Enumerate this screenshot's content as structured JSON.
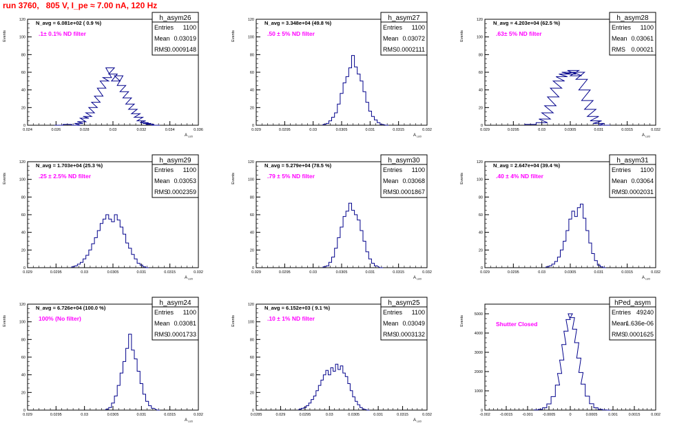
{
  "title": "run 3760,   805 V, I_pe ≈ 7.00 nA, 120 Hz",
  "colors": {
    "title": "#ff0000",
    "histogram": "#00008b",
    "annotation": "#ff00ff",
    "axis": "#000000"
  },
  "stats_labels": {
    "entries": "Entries",
    "mean": "Mean",
    "rms": "RMS"
  },
  "chart_data": [
    {
      "type": "histogram",
      "name": "h_asym26",
      "navg": "N_avg = 6.081e+02 ( 0.9 %)",
      "filter": ".1± 0.1% ND filter",
      "entries": "1100",
      "mean": "0.03019",
      "rms": "0.0009148",
      "ylabel": "Events",
      "xlabel": "A",
      "xlim": [
        0.024,
        0.036
      ],
      "ylim": [
        0,
        120
      ],
      "xticks": [
        "0.024",
        "0.026",
        "0.028",
        "0.03",
        "0.032",
        "0.034",
        "0.036"
      ],
      "yticks": [
        "0",
        "20",
        "40",
        "60",
        "80",
        "100",
        "120"
      ],
      "bins": [
        [
          0.0262,
          0
        ],
        [
          0.0268,
          1
        ],
        [
          0.0274,
          0
        ],
        [
          0.0276,
          2
        ],
        [
          0.0278,
          4
        ],
        [
          0.028,
          8
        ],
        [
          0.0282,
          10
        ],
        [
          0.0284,
          14
        ],
        [
          0.0286,
          20
        ],
        [
          0.0288,
          26
        ],
        [
          0.029,
          33
        ],
        [
          0.0292,
          42
        ],
        [
          0.0294,
          50
        ],
        [
          0.0296,
          54
        ],
        [
          0.0298,
          65
        ],
        [
          0.03,
          58
        ],
        [
          0.0302,
          50
        ],
        [
          0.0304,
          56
        ],
        [
          0.0306,
          45
        ],
        [
          0.0308,
          38
        ],
        [
          0.031,
          31
        ],
        [
          0.0312,
          24
        ],
        [
          0.0314,
          18
        ],
        [
          0.0316,
          13
        ],
        [
          0.0318,
          9
        ],
        [
          0.032,
          5
        ],
        [
          0.0322,
          3
        ],
        [
          0.0324,
          2
        ],
        [
          0.0326,
          1
        ],
        [
          0.033,
          0
        ]
      ]
    },
    {
      "type": "histogram",
      "name": "h_asym27",
      "navg": "N_avg = 3.348e+04 (49.8 %)",
      "filter": ".50 ± 5% ND filter",
      "entries": "1100",
      "mean": "0.03072",
      "rms": "0.0002111",
      "ylabel": "Events",
      "xlabel": "A",
      "xlim": [
        0.029,
        0.032
      ],
      "ylim": [
        0,
        120
      ],
      "xticks": [
        "0.029",
        "0.0295",
        "0.03",
        "0.0305",
        "0.031",
        "0.0315",
        "0.032"
      ],
      "yticks": [
        "0",
        "20",
        "40",
        "60",
        "80",
        "100",
        "120"
      ],
      "bins": [
        [
          0.0302,
          1
        ],
        [
          0.03025,
          2
        ],
        [
          0.0303,
          5
        ],
        [
          0.03035,
          9
        ],
        [
          0.0304,
          14
        ],
        [
          0.03045,
          24
        ],
        [
          0.0305,
          36
        ],
        [
          0.03055,
          48
        ],
        [
          0.0306,
          55
        ],
        [
          0.03065,
          65
        ],
        [
          0.0307,
          79
        ],
        [
          0.03075,
          66
        ],
        [
          0.0308,
          58
        ],
        [
          0.03085,
          50
        ],
        [
          0.0309,
          38
        ],
        [
          0.03095,
          26
        ],
        [
          0.031,
          16
        ],
        [
          0.03105,
          10
        ],
        [
          0.0311,
          6
        ],
        [
          0.03115,
          3
        ],
        [
          0.0312,
          1
        ],
        [
          0.0313,
          0
        ]
      ]
    },
    {
      "type": "histogram",
      "name": "h_asym28",
      "navg": "N_avg = 4.203e+04 (62.5 %)",
      "filter": ".63± 5% ND filter",
      "entries": "1100",
      "mean": "0.03061",
      "rms": "0.00021",
      "ylabel": "Events",
      "xlabel": "A",
      "xlim": [
        0.029,
        0.032
      ],
      "ylim": [
        0,
        120
      ],
      "xticks": [
        "0.029",
        "0.0295",
        "0.03",
        "0.0305",
        "0.031",
        "0.0315",
        "0.032"
      ],
      "yticks": [
        "0",
        "20",
        "40",
        "60",
        "80",
        "100",
        "120"
      ],
      "bins": [
        [
          0.0298,
          1
        ],
        [
          0.03,
          3
        ],
        [
          0.03005,
          7
        ],
        [
          0.0301,
          14
        ],
        [
          0.03015,
          22
        ],
        [
          0.0302,
          32
        ],
        [
          0.03025,
          42
        ],
        [
          0.0303,
          50
        ],
        [
          0.03035,
          55
        ],
        [
          0.0304,
          58
        ],
        [
          0.03045,
          60
        ],
        [
          0.0305,
          58
        ],
        [
          0.03055,
          62
        ],
        [
          0.0306,
          56
        ],
        [
          0.03065,
          60
        ],
        [
          0.0307,
          52
        ],
        [
          0.03075,
          40
        ],
        [
          0.0308,
          28
        ],
        [
          0.03085,
          18
        ],
        [
          0.0309,
          10
        ],
        [
          0.03095,
          5
        ],
        [
          0.031,
          2
        ],
        [
          0.0311,
          0
        ]
      ]
    },
    {
      "type": "histogram",
      "name": "h_asym29",
      "navg": "N_avg = 1.703e+04 (25.3 %)",
      "filter": ".25 ± 2.5% ND filter",
      "entries": "1100",
      "mean": "0.03053",
      "rms": "0.0002359",
      "ylabel": "Events",
      "xlabel": "A",
      "xlim": [
        0.029,
        0.032
      ],
      "ylim": [
        0,
        120
      ],
      "xticks": [
        "0.029",
        "0.0295",
        "0.03",
        "0.0305",
        "0.031",
        "0.0315",
        "0.032"
      ],
      "yticks": [
        "0",
        "20",
        "40",
        "60",
        "80",
        "100",
        "120"
      ],
      "bins": [
        [
          0.0298,
          1
        ],
        [
          0.02985,
          2
        ],
        [
          0.0299,
          4
        ],
        [
          0.02995,
          6
        ],
        [
          0.03,
          10
        ],
        [
          0.03005,
          14
        ],
        [
          0.0301,
          20
        ],
        [
          0.03015,
          27
        ],
        [
          0.0302,
          34
        ],
        [
          0.03025,
          42
        ],
        [
          0.0303,
          50
        ],
        [
          0.03035,
          55
        ],
        [
          0.0304,
          60
        ],
        [
          0.03045,
          55
        ],
        [
          0.0305,
          52
        ],
        [
          0.03055,
          60
        ],
        [
          0.0306,
          54
        ],
        [
          0.03065,
          46
        ],
        [
          0.0307,
          38
        ],
        [
          0.03075,
          28
        ],
        [
          0.0308,
          22
        ],
        [
          0.03085,
          15
        ],
        [
          0.0309,
          10
        ],
        [
          0.03095,
          5
        ],
        [
          0.031,
          3
        ],
        [
          0.03105,
          1
        ],
        [
          0.0311,
          0
        ]
      ]
    },
    {
      "type": "histogram",
      "name": "h_asym30",
      "navg": "N_avg = 5.279e+04 (78.5 %)",
      "filter": ".79 ± 5% ND filter",
      "entries": "1100",
      "mean": "0.03068",
      "rms": "0.0001867",
      "ylabel": "Events",
      "xlabel": "A",
      "xlim": [
        0.029,
        0.032
      ],
      "ylim": [
        0,
        120
      ],
      "xticks": [
        "0.029",
        "0.0295",
        "0.03",
        "0.0305",
        "0.031",
        "0.0315",
        "0.032"
      ],
      "yticks": [
        "0",
        "20",
        "40",
        "60",
        "80",
        "100",
        "120"
      ],
      "bins": [
        [
          0.0302,
          1
        ],
        [
          0.03025,
          2
        ],
        [
          0.0303,
          6
        ],
        [
          0.03035,
          12
        ],
        [
          0.0304,
          22
        ],
        [
          0.03045,
          34
        ],
        [
          0.0305,
          46
        ],
        [
          0.03055,
          58
        ],
        [
          0.0306,
          64
        ],
        [
          0.03065,
          73
        ],
        [
          0.0307,
          65
        ],
        [
          0.03075,
          60
        ],
        [
          0.0308,
          54
        ],
        [
          0.03085,
          42
        ],
        [
          0.0309,
          30
        ],
        [
          0.03095,
          18
        ],
        [
          0.031,
          10
        ],
        [
          0.03105,
          5
        ],
        [
          0.0311,
          2
        ],
        [
          0.0312,
          0
        ]
      ]
    },
    {
      "type": "histogram",
      "name": "h_asym31",
      "navg": "N_avg = 2.647e+04 (39.4 %)",
      "filter": ".40 ± 4% ND filter",
      "entries": "1100",
      "mean": "0.03064",
      "rms": "0.0002031",
      "ylabel": "Events",
      "xlabel": "A",
      "xlim": [
        0.029,
        0.032
      ],
      "ylim": [
        0,
        120
      ],
      "xticks": [
        "0.029",
        "0.0295",
        "0.03",
        "0.0305",
        "0.031",
        "0.0315",
        "0.032"
      ],
      "yticks": [
        "0",
        "20",
        "40",
        "60",
        "80",
        "100",
        "120"
      ],
      "bins": [
        [
          0.0301,
          1
        ],
        [
          0.03015,
          2
        ],
        [
          0.0302,
          4
        ],
        [
          0.03025,
          7
        ],
        [
          0.0303,
          12
        ],
        [
          0.03035,
          20
        ],
        [
          0.0304,
          30
        ],
        [
          0.03045,
          42
        ],
        [
          0.0305,
          55
        ],
        [
          0.03055,
          64
        ],
        [
          0.0306,
          58
        ],
        [
          0.03065,
          68
        ],
        [
          0.0307,
          72
        ],
        [
          0.03075,
          56
        ],
        [
          0.0308,
          42
        ],
        [
          0.03085,
          28
        ],
        [
          0.0309,
          16
        ],
        [
          0.03095,
          8
        ],
        [
          0.031,
          3
        ],
        [
          0.03105,
          1
        ],
        [
          0.0311,
          0
        ]
      ]
    },
    {
      "type": "histogram",
      "name": "h_asym24",
      "navg": "N_avg = 6.726e+04 (100.0 %)",
      "filter": "100% (No filter)",
      "entries": "1100",
      "mean": "0.03081",
      "rms": "0.0001733",
      "ylabel": "Events",
      "xlabel": "A",
      "xlim": [
        0.029,
        0.032
      ],
      "ylim": [
        0,
        120
      ],
      "xticks": [
        "0.029",
        "0.0295",
        "0.03",
        "0.0305",
        "0.031",
        "0.0315",
        "0.032"
      ],
      "yticks": [
        "0",
        "20",
        "40",
        "60",
        "80",
        "100",
        "120"
      ],
      "bins": [
        [
          0.0304,
          1
        ],
        [
          0.03045,
          3
        ],
        [
          0.0305,
          8
        ],
        [
          0.03055,
          16
        ],
        [
          0.0306,
          28
        ],
        [
          0.03065,
          42
        ],
        [
          0.0307,
          55
        ],
        [
          0.03075,
          70
        ],
        [
          0.0308,
          86
        ],
        [
          0.03085,
          68
        ],
        [
          0.0309,
          58
        ],
        [
          0.03095,
          44
        ],
        [
          0.031,
          30
        ],
        [
          0.03105,
          18
        ],
        [
          0.0311,
          10
        ],
        [
          0.03115,
          5
        ],
        [
          0.0312,
          2
        ],
        [
          0.0313,
          0
        ]
      ]
    },
    {
      "type": "histogram",
      "name": "h_asym25",
      "navg": "N_avg = 6.152e+03 ( 9.1 %)",
      "filter": ".10 ± 1% ND filter",
      "entries": "1100",
      "mean": "0.03049",
      "rms": "0.0003132",
      "ylabel": "Events",
      "xlabel": "A",
      "xlim": [
        0.0285,
        0.032
      ],
      "ylim": [
        0,
        120
      ],
      "xticks": [
        "0.0285",
        "0.029",
        "0.0295",
        "0.03",
        "0.0305",
        "0.031",
        "0.0315",
        "0.032"
      ],
      "yticks": [
        "0",
        "20",
        "40",
        "60",
        "80",
        "100",
        "120"
      ],
      "bins": [
        [
          0.0294,
          1
        ],
        [
          0.02945,
          2
        ],
        [
          0.0295,
          3
        ],
        [
          0.02955,
          5
        ],
        [
          0.0296,
          8
        ],
        [
          0.02965,
          12
        ],
        [
          0.0297,
          16
        ],
        [
          0.02975,
          22
        ],
        [
          0.0298,
          28
        ],
        [
          0.02985,
          34
        ],
        [
          0.0299,
          40
        ],
        [
          0.02995,
          45
        ],
        [
          0.03,
          40
        ],
        [
          0.03005,
          48
        ],
        [
          0.0301,
          44
        ],
        [
          0.03015,
          52
        ],
        [
          0.0302,
          46
        ],
        [
          0.03025,
          50
        ],
        [
          0.0303,
          42
        ],
        [
          0.03035,
          38
        ],
        [
          0.0304,
          30
        ],
        [
          0.03045,
          22
        ],
        [
          0.0305,
          15
        ],
        [
          0.03055,
          10
        ],
        [
          0.0306,
          6
        ],
        [
          0.03065,
          3
        ],
        [
          0.0307,
          1
        ],
        [
          0.0308,
          0
        ]
      ]
    },
    {
      "type": "histogram",
      "name": "hPed_asym",
      "navg": "",
      "filter": "Shutter Closed",
      "entries": "49240",
      "mean": "1.636e-06",
      "rms": "0.0001625",
      "ylabel": "Events",
      "xlabel": "",
      "xlim": [
        -0.002,
        0.002
      ],
      "ylim": [
        0,
        5500
      ],
      "xticks": [
        "-0.002",
        "-0.0015",
        "-0.001",
        "-0.0005",
        "0",
        "0.0005",
        "0.001",
        "0.0015",
        "0.002"
      ],
      "yticks": [
        "0",
        "1000",
        "2000",
        "3000",
        "4000",
        "5000"
      ],
      "bins": [
        [
          -0.0008,
          10
        ],
        [
          -0.0007,
          40
        ],
        [
          -0.0006,
          120
        ],
        [
          -0.0005,
          320
        ],
        [
          -0.0004,
          700
        ],
        [
          -0.0003,
          1300
        ],
        [
          -0.00025,
          1900
        ],
        [
          -0.0002,
          2600
        ],
        [
          -0.00015,
          3400
        ],
        [
          -0.0001,
          4100
        ],
        [
          -5e-05,
          4700
        ],
        [
          0,
          5000
        ],
        [
          5e-05,
          4800
        ],
        [
          0.0001,
          4200
        ],
        [
          0.00015,
          3500
        ],
        [
          0.0002,
          2700
        ],
        [
          0.00025,
          1950
        ],
        [
          0.0003,
          1350
        ],
        [
          0.0004,
          720
        ],
        [
          0.0005,
          330
        ],
        [
          0.0006,
          120
        ],
        [
          0.0007,
          40
        ],
        [
          0.0008,
          10
        ],
        [
          0.0009,
          0
        ]
      ]
    }
  ]
}
